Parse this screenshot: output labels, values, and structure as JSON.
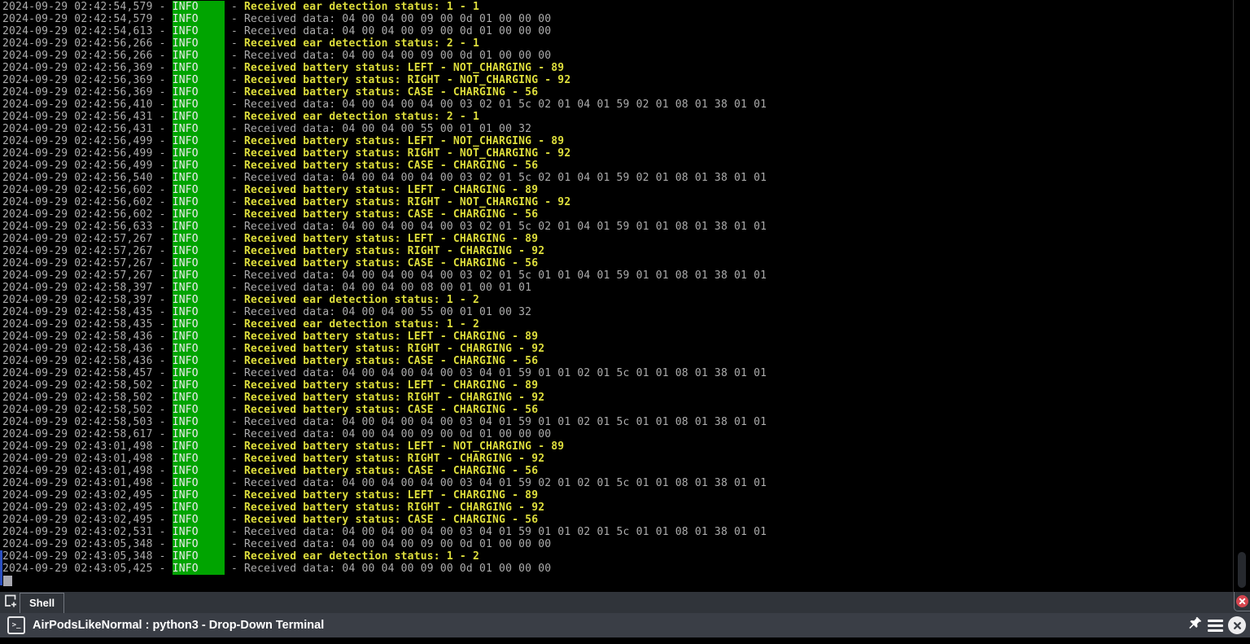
{
  "terminal": {
    "date": "2024-09-29",
    "level_label": "INFO",
    "lines": [
      {
        "t": "02:42:54,579",
        "k": "hl",
        "m": "Received ear detection status: 1 - 1"
      },
      {
        "t": "02:42:54,579",
        "k": "data",
        "m": "Received data: 04 00 04 00 09 00 0d 01 00 00 00"
      },
      {
        "t": "02:42:54,613",
        "k": "data",
        "m": "Received data: 04 00 04 00 09 00 0d 01 00 00 00"
      },
      {
        "t": "02:42:56,266",
        "k": "hl",
        "m": "Received ear detection status: 2 - 1"
      },
      {
        "t": "02:42:56,266",
        "k": "data",
        "m": "Received data: 04 00 04 00 09 00 0d 01 00 00 00"
      },
      {
        "t": "02:42:56,369",
        "k": "hl",
        "m": "Received battery status: LEFT - NOT_CHARGING - 89"
      },
      {
        "t": "02:42:56,369",
        "k": "hl",
        "m": "Received battery status: RIGHT - NOT_CHARGING - 92"
      },
      {
        "t": "02:42:56,369",
        "k": "hl",
        "m": "Received battery status: CASE - CHARGING - 56"
      },
      {
        "t": "02:42:56,410",
        "k": "data",
        "m": "Received data: 04 00 04 00 04 00 03 02 01 5c 02 01 04 01 59 02 01 08 01 38 01 01"
      },
      {
        "t": "02:42:56,431",
        "k": "hl",
        "m": "Received ear detection status: 2 - 1"
      },
      {
        "t": "02:42:56,431",
        "k": "data",
        "m": "Received data: 04 00 04 00 55 00 01 01 00 32"
      },
      {
        "t": "02:42:56,499",
        "k": "hl",
        "m": "Received battery status: LEFT - NOT_CHARGING - 89"
      },
      {
        "t": "02:42:56,499",
        "k": "hl",
        "m": "Received battery status: RIGHT - NOT_CHARGING - 92"
      },
      {
        "t": "02:42:56,499",
        "k": "hl",
        "m": "Received battery status: CASE - CHARGING - 56"
      },
      {
        "t": "02:42:56,540",
        "k": "data",
        "m": "Received data: 04 00 04 00 04 00 03 02 01 5c 02 01 04 01 59 02 01 08 01 38 01 01"
      },
      {
        "t": "02:42:56,602",
        "k": "hl",
        "m": "Received battery status: LEFT - CHARGING - 89"
      },
      {
        "t": "02:42:56,602",
        "k": "hl",
        "m": "Received battery status: RIGHT - NOT_CHARGING - 92"
      },
      {
        "t": "02:42:56,602",
        "k": "hl",
        "m": "Received battery status: CASE - CHARGING - 56"
      },
      {
        "t": "02:42:56,633",
        "k": "data",
        "m": "Received data: 04 00 04 00 04 00 03 02 01 5c 02 01 04 01 59 01 01 08 01 38 01 01"
      },
      {
        "t": "02:42:57,267",
        "k": "hl",
        "m": "Received battery status: LEFT - CHARGING - 89"
      },
      {
        "t": "02:42:57,267",
        "k": "hl",
        "m": "Received battery status: RIGHT - CHARGING - 92"
      },
      {
        "t": "02:42:57,267",
        "k": "hl",
        "m": "Received battery status: CASE - CHARGING - 56"
      },
      {
        "t": "02:42:57,267",
        "k": "data",
        "m": "Received data: 04 00 04 00 04 00 03 02 01 5c 01 01 04 01 59 01 01 08 01 38 01 01"
      },
      {
        "t": "02:42:58,397",
        "k": "data",
        "m": "Received data: 04 00 04 00 08 00 01 00 01 01"
      },
      {
        "t": "02:42:58,397",
        "k": "hl",
        "m": "Received ear detection status: 1 - 2"
      },
      {
        "t": "02:42:58,435",
        "k": "data",
        "m": "Received data: 04 00 04 00 55 00 01 01 00 32"
      },
      {
        "t": "02:42:58,435",
        "k": "hl",
        "m": "Received ear detection status: 1 - 2"
      },
      {
        "t": "02:42:58,436",
        "k": "hl",
        "m": "Received battery status: LEFT - CHARGING - 89"
      },
      {
        "t": "02:42:58,436",
        "k": "hl",
        "m": "Received battery status: RIGHT - CHARGING - 92"
      },
      {
        "t": "02:42:58,436",
        "k": "hl",
        "m": "Received battery status: CASE - CHARGING - 56"
      },
      {
        "t": "02:42:58,457",
        "k": "data",
        "m": "Received data: 04 00 04 00 04 00 03 04 01 59 01 01 02 01 5c 01 01 08 01 38 01 01"
      },
      {
        "t": "02:42:58,502",
        "k": "hl",
        "m": "Received battery status: LEFT - CHARGING - 89"
      },
      {
        "t": "02:42:58,502",
        "k": "hl",
        "m": "Received battery status: RIGHT - CHARGING - 92"
      },
      {
        "t": "02:42:58,502",
        "k": "hl",
        "m": "Received battery status: CASE - CHARGING - 56"
      },
      {
        "t": "02:42:58,503",
        "k": "data",
        "m": "Received data: 04 00 04 00 04 00 03 04 01 59 01 01 02 01 5c 01 01 08 01 38 01 01"
      },
      {
        "t": "02:42:58,617",
        "k": "data",
        "m": "Received data: 04 00 04 00 09 00 0d 01 00 00 00"
      },
      {
        "t": "02:43:01,498",
        "k": "hl",
        "m": "Received battery status: LEFT - NOT_CHARGING - 89"
      },
      {
        "t": "02:43:01,498",
        "k": "hl",
        "m": "Received battery status: RIGHT - CHARGING - 92"
      },
      {
        "t": "02:43:01,498",
        "k": "hl",
        "m": "Received battery status: CASE - CHARGING - 56"
      },
      {
        "t": "02:43:01,498",
        "k": "data",
        "m": "Received data: 04 00 04 00 04 00 03 04 01 59 02 01 02 01 5c 01 01 08 01 38 01 01"
      },
      {
        "t": "02:43:02,495",
        "k": "hl",
        "m": "Received battery status: LEFT - CHARGING - 89"
      },
      {
        "t": "02:43:02,495",
        "k": "hl",
        "m": "Received battery status: RIGHT - CHARGING - 92"
      },
      {
        "t": "02:43:02,495",
        "k": "hl",
        "m": "Received battery status: CASE - CHARGING - 56"
      },
      {
        "t": "02:43:02,531",
        "k": "data",
        "m": "Received data: 04 00 04 00 04 00 03 04 01 59 01 01 02 01 5c 01 01 08 01 38 01 01"
      },
      {
        "t": "02:43:05,348",
        "k": "data",
        "m": "Received data: 04 00 04 00 09 00 0d 01 00 00 00"
      },
      {
        "t": "02:43:05,348",
        "k": "hl",
        "m": "Received ear detection status: 1 - 2"
      },
      {
        "t": "02:43:05,425",
        "k": "data",
        "m": "Received data: 04 00 04 00 09 00 0d 01 00 00 00"
      }
    ]
  },
  "tab_bar": {
    "shell_tab_label": "Shell"
  },
  "status_bar": {
    "title": "AirPodsLikeNormal : python3 - Drop-Down Terminal"
  },
  "icons": {
    "new_tab": "new-tab-icon",
    "tab_close": "close-icon",
    "terminal_prompt": "terminal-prompt-icon",
    "pin": "pin-icon",
    "menu": "hamburger-menu-icon",
    "window_close": "close-icon"
  },
  "colors": {
    "level_bg": "#00a400",
    "highlight": "#dede3c",
    "muted": "#acacac",
    "tab_bar_bg": "#30343a",
    "status_bar_bg": "#3a3e46",
    "close_red": "#d5454f",
    "activity_blue": "#2b4fc0"
  }
}
